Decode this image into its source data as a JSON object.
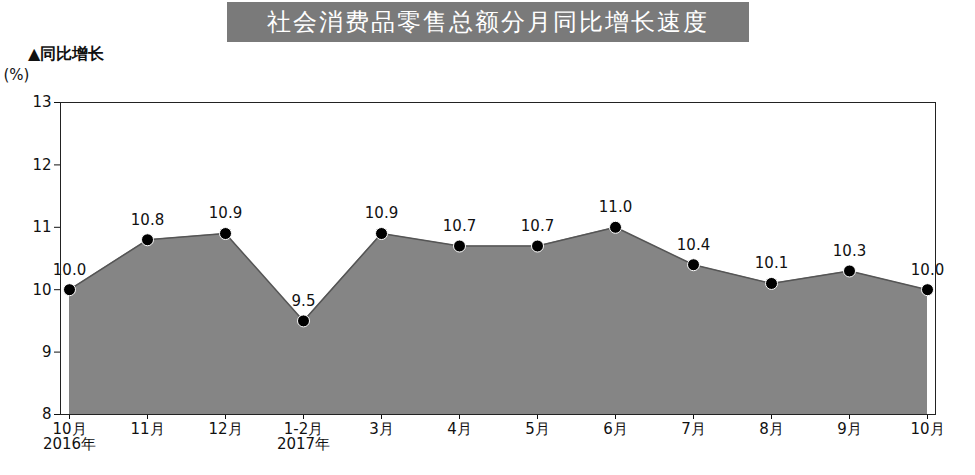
{
  "chart_data": {
    "type": "area",
    "title": "社会消费品零售总额分月同比增长速度",
    "subtitle": "▲同比增长",
    "y_label": "(%)",
    "categories": [
      "10月\n2016年",
      "11月",
      "12月",
      "1-2月\n2017年",
      "3月",
      "4月",
      "5月",
      "6月",
      "7月",
      "8月",
      "9月",
      "10月"
    ],
    "values": [
      10.0,
      10.8,
      10.9,
      9.5,
      10.9,
      10.7,
      10.7,
      11.0,
      10.4,
      10.1,
      10.3,
      10.0
    ],
    "value_labels": [
      "10.0",
      "10.8",
      "10.9",
      "9.5",
      "10.9",
      "10.7",
      "10.7",
      "11.0",
      "10.4",
      "10.1",
      "10.3",
      "10.0"
    ],
    "color": "#858585",
    "marker": "circle",
    "ylim": [
      8,
      13
    ],
    "yticks": [
      8,
      9,
      10,
      11,
      12,
      13
    ],
    "grid": false,
    "data_labels": true
  }
}
